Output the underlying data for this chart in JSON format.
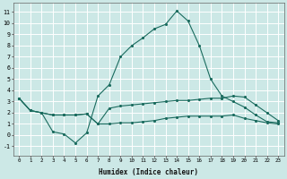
{
  "xlabel": "Humidex (Indice chaleur)",
  "ylabel": "",
  "bg_color": "#cce8e6",
  "grid_color": "#ffffff",
  "line_color": "#1a6b5e",
  "xlim": [
    -0.5,
    23.5
  ],
  "ylim": [
    -1.8,
    11.8
  ],
  "xticks": [
    0,
    1,
    2,
    3,
    4,
    5,
    6,
    7,
    8,
    9,
    10,
    11,
    12,
    13,
    14,
    15,
    16,
    17,
    18,
    19,
    20,
    21,
    22,
    23
  ],
  "yticks": [
    -1,
    0,
    1,
    2,
    3,
    4,
    5,
    6,
    7,
    8,
    9,
    10,
    11
  ],
  "series": [
    [
      3.3,
      2.2,
      2.0,
      0.3,
      0.1,
      -0.7,
      0.2,
      3.5,
      4.5,
      7.0,
      8.0,
      8.7,
      9.5,
      9.9,
      11.1,
      10.2,
      8.0,
      5.0,
      3.5,
      3.0,
      2.5,
      1.8,
      1.2,
      1.1
    ],
    [
      3.3,
      2.2,
      2.0,
      1.8,
      1.8,
      1.8,
      1.9,
      1.0,
      2.4,
      2.6,
      2.7,
      2.8,
      2.9,
      3.0,
      3.1,
      3.1,
      3.2,
      3.3,
      3.3,
      3.5,
      3.4,
      2.7,
      2.0,
      1.3
    ],
    [
      3.3,
      2.2,
      2.0,
      1.8,
      1.8,
      1.8,
      1.9,
      1.0,
      1.0,
      1.1,
      1.1,
      1.2,
      1.3,
      1.5,
      1.6,
      1.7,
      1.7,
      1.7,
      1.7,
      1.8,
      1.5,
      1.3,
      1.1,
      1.0
    ]
  ],
  "xlabel_fontsize": 5.5,
  "xlabel_fontfamily": "monospace",
  "xtick_fontsize": 4.2,
  "ytick_fontsize": 4.8
}
